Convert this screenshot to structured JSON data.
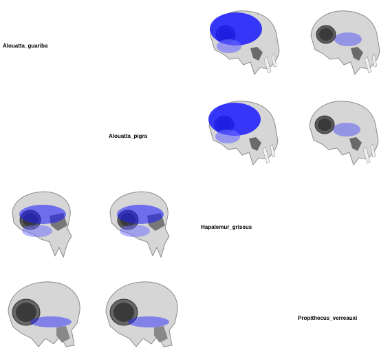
{
  "species": [
    {
      "label": "Alouatta_guariba"
    },
    {
      "label": "Alouatta_pigra"
    },
    {
      "label": "Hapalemur_griseus"
    },
    {
      "label": "Propithecus_verreauxi"
    }
  ],
  "skulls": [
    {
      "heatmap": "heavy",
      "view": "howler-lateral"
    },
    {
      "heatmap": "light",
      "view": "howler-lateral"
    },
    {
      "heatmap": "heavy",
      "view": "howler-lateral"
    },
    {
      "heatmap": "light",
      "view": "howler-lateral"
    },
    {
      "heatmap": "medium",
      "view": "lemur-lateral"
    },
    {
      "heatmap": "medium",
      "view": "lemur-lateral"
    },
    {
      "heatmap": "light",
      "view": "sifaka-lateral"
    },
    {
      "heatmap": "light",
      "view": "sifaka-lateral"
    }
  ],
  "colors": {
    "bone": "#d6d6d6",
    "bone_shadow": "#8a8a8a",
    "heat": "#1a1aff",
    "heat_light": "#6a6aff"
  }
}
